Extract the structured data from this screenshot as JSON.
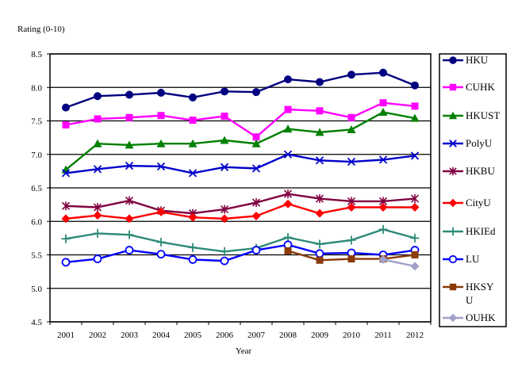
{
  "chart_data": {
    "type": "line",
    "ylabel": "Rating (0-10)",
    "xlabel": "Year",
    "categories": [
      "2001",
      "2002",
      "2003",
      "2004",
      "2005",
      "2006",
      "2007",
      "2008",
      "2009",
      "2010",
      "2011",
      "2012"
    ],
    "ylim": [
      4.5,
      8.5
    ],
    "yticks": [
      "4.5",
      "5.0",
      "5.5",
      "6.0",
      "6.5",
      "7.0",
      "7.5",
      "8.0",
      "8.5"
    ],
    "grid": "horizontal",
    "legend": "right",
    "series": [
      {
        "name": "HKU",
        "color": "#000080",
        "marker": "circle-filled",
        "values": [
          7.7,
          7.87,
          7.89,
          7.92,
          7.85,
          7.94,
          7.93,
          8.12,
          8.08,
          8.19,
          8.22,
          8.03
        ]
      },
      {
        "name": "CUHK",
        "color": "#ff00ff",
        "marker": "square-filled",
        "values": [
          7.44,
          7.53,
          7.55,
          7.58,
          7.51,
          7.57,
          7.26,
          7.67,
          7.65,
          7.55,
          7.77,
          7.72
        ]
      },
      {
        "name": "HKUST",
        "color": "#008000",
        "marker": "triangle-filled",
        "values": [
          6.77,
          7.16,
          7.14,
          7.16,
          7.16,
          7.21,
          7.16,
          7.38,
          7.33,
          7.37,
          7.63,
          7.54
        ]
      },
      {
        "name": "PolyU",
        "color": "#0000cc",
        "marker": "x",
        "values": [
          6.72,
          6.78,
          6.83,
          6.82,
          6.72,
          6.81,
          6.79,
          7.0,
          6.91,
          6.89,
          6.92,
          6.98
        ]
      },
      {
        "name": "HKBU",
        "color": "#800040",
        "marker": "asterisk",
        "values": [
          6.23,
          6.21,
          6.31,
          6.16,
          6.12,
          6.18,
          6.28,
          6.41,
          6.34,
          6.3,
          6.3,
          6.34
        ]
      },
      {
        "name": "CityU",
        "color": "#ff0000",
        "marker": "diamond-filled",
        "values": [
          6.04,
          6.09,
          6.04,
          6.14,
          6.06,
          6.04,
          6.08,
          6.26,
          6.12,
          6.21,
          6.21,
          6.21
        ]
      },
      {
        "name": "HKIEd",
        "color": "#2e8b77",
        "marker": "plus",
        "values": [
          5.74,
          5.82,
          5.8,
          5.69,
          5.61,
          5.55,
          5.6,
          5.76,
          5.66,
          5.72,
          5.88,
          5.75
        ]
      },
      {
        "name": "LU",
        "color": "#0000ff",
        "marker": "circle-open",
        "values": [
          5.39,
          5.44,
          5.57,
          5.51,
          5.43,
          5.41,
          5.57,
          5.65,
          5.52,
          5.53,
          5.5,
          5.57
        ]
      },
      {
        "name": "HKSYU",
        "color": "#8b3a0a",
        "marker": "square-filled",
        "values": [
          null,
          null,
          null,
          null,
          null,
          null,
          null,
          5.56,
          5.42,
          5.44,
          5.44,
          5.5
        ]
      },
      {
        "name": "OUHK",
        "color": "#a0a0c8",
        "marker": "diamond-filled",
        "values": [
          null,
          null,
          null,
          null,
          null,
          null,
          null,
          null,
          null,
          null,
          5.43,
          5.33
        ]
      }
    ]
  }
}
